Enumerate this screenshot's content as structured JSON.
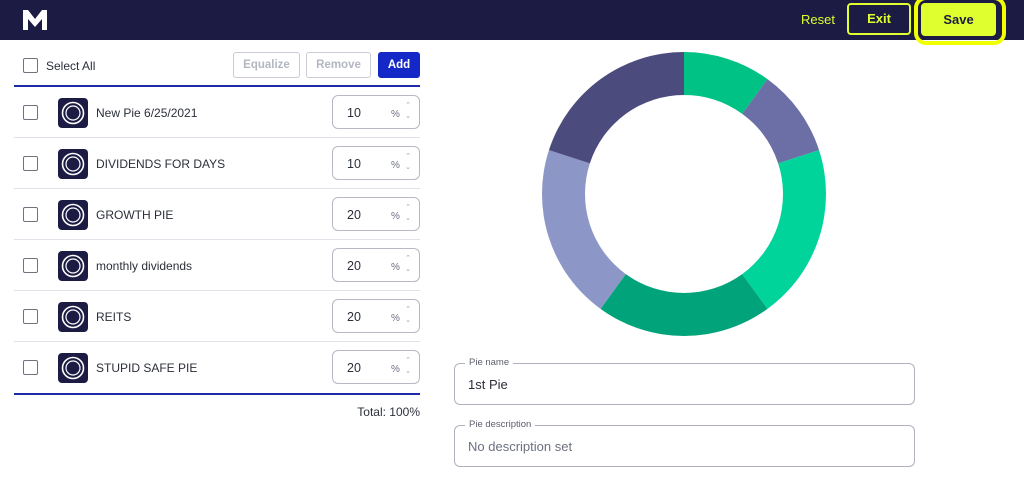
{
  "header": {
    "reset_label": "Reset",
    "exit_label": "Exit",
    "save_label": "Save",
    "brand_color": "#1c1b44",
    "accent_color": "#dfff2e"
  },
  "toolbar": {
    "select_all_label": "Select All",
    "equalize_label": "Equalize",
    "remove_label": "Remove",
    "add_label": "Add"
  },
  "slices": [
    {
      "name": "New Pie 6/25/2021",
      "percent": "10",
      "unit": "%",
      "icon": "pie-icon"
    },
    {
      "name": "DIVIDENDS FOR DAYS",
      "percent": "10",
      "unit": "%",
      "icon": "pie-icon"
    },
    {
      "name": "GROWTH PIE",
      "percent": "20",
      "unit": "%",
      "icon": "pie-icon"
    },
    {
      "name": "monthly dividends",
      "percent": "20",
      "unit": "%",
      "icon": "pie-icon"
    },
    {
      "name": "REITS",
      "percent": "20",
      "unit": "%",
      "icon": "pie-icon"
    },
    {
      "name": "STUPID SAFE PIE",
      "percent": "20",
      "unit": "%",
      "icon": "pie-icon"
    }
  ],
  "total_label": "Total: 100%",
  "donut": {
    "values": [
      10,
      10,
      20,
      20,
      20,
      20
    ],
    "colors": [
      "#00c285",
      "#6b6fa6",
      "#00d49a",
      "#00a37a",
      "#8c97c7",
      "#4c4b7d"
    ]
  },
  "form": {
    "pie_name_label": "Pie name",
    "pie_name_value": "1st Pie",
    "pie_description_label": "Pie description",
    "pie_description_placeholder": "No description set"
  }
}
